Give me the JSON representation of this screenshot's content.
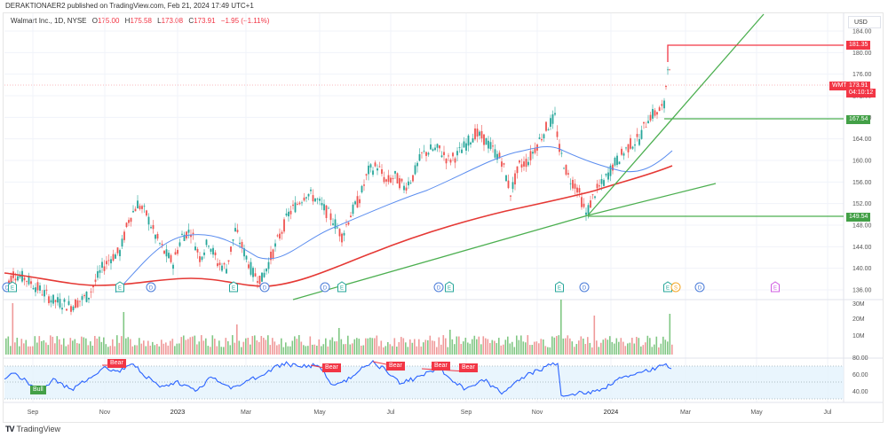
{
  "header": {
    "published": "DERAKTIONAER2 published on TradingView.com, Feb 21, 2024 17:49 UTC+1"
  },
  "legend": {
    "symbol": "Walmart Inc., 1D, NYSE",
    "open_label": "O",
    "open": "175.00",
    "high_label": "H",
    "high": "175.58",
    "low_label": "L",
    "low": "173.08",
    "close_label": "C",
    "close": "173.91",
    "change": "−1.95 (−1.11%)"
  },
  "price_axis": {
    "currency": "USD",
    "ticks": [
      "184.00",
      "180.00",
      "176.00",
      "172.00",
      "168.00",
      "164.00",
      "160.00",
      "156.00",
      "152.00",
      "148.00",
      "144.00",
      "140.00",
      "136.00"
    ]
  },
  "price_tags": {
    "resistance": "181.35",
    "symbol": "WMT",
    "last_price": "173.91",
    "countdown": "04:10:12",
    "support_1": "167.54",
    "support_2": "149.54"
  },
  "volume_axis": {
    "ticks": [
      "30M",
      "20M",
      "10M"
    ]
  },
  "rsi_axis": {
    "ticks": [
      "80.00",
      "60.00",
      "40.00"
    ]
  },
  "rsi_labels": [
    {
      "text": "Bull",
      "type": "bull"
    },
    {
      "text": "Bear",
      "type": "bear"
    },
    {
      "text": "Bear",
      "type": "bear"
    },
    {
      "text": "Bear",
      "type": "bear"
    },
    {
      "text": "Bear",
      "type": "bear"
    },
    {
      "text": "Bear",
      "type": "bear"
    }
  ],
  "time_axis": {
    "labels": [
      "Sep",
      "Nov",
      "2023",
      "Mar",
      "May",
      "Jul",
      "Sep",
      "Nov",
      "2024",
      "Mar",
      "May",
      "Jul"
    ]
  },
  "event_markers": [
    "D",
    "E",
    "E",
    "D",
    "E",
    "D",
    "D",
    "E",
    "D",
    "E",
    "E",
    "D",
    "E",
    "S",
    "D",
    "E"
  ],
  "footer": {
    "brand": "TradingView",
    "logo": "TV"
  },
  "colors": {
    "up": "#26a69a",
    "down": "#ef5350",
    "ma_long": "#e53935",
    "ma_short": "#5b8def",
    "trendline": "#4caf50",
    "rsi_line": "#2962ff",
    "rsi_band": "#e3f2fd",
    "resistance": "#f23645",
    "support": "#4caf50"
  },
  "chart_data": {
    "type": "candlestick",
    "title": "Walmart Inc., 1D, NYSE",
    "ylabel": "USD",
    "ylim": [
      134,
      186
    ],
    "x": [
      "Sep 2022",
      "Nov 2022",
      "Jan 2023",
      "Mar 2023",
      "May 2023",
      "Jul 2023",
      "Sep 2023",
      "Nov 2023",
      "Jan 2024",
      "Feb 2024"
    ],
    "series": [
      {
        "name": "Close (approx)",
        "values": [
          138,
          139,
          150,
          138,
          147,
          157,
          163,
          168,
          156,
          173.91
        ]
      },
      {
        "name": "MA short (blue, approx)",
        "values": [
          136,
          140,
          146,
          142,
          149,
          155,
          160,
          164,
          157,
          161
        ]
      },
      {
        "name": "MA long (red, approx)",
        "values": [
          138,
          136,
          137,
          136,
          140,
          145,
          150,
          153,
          155,
          159
        ]
      }
    ],
    "last": {
      "open": 175.0,
      "high": 175.58,
      "low": 173.08,
      "close": 173.91,
      "change": -1.95,
      "change_pct": -1.11
    },
    "horizontal_levels": [
      181.35,
      167.54,
      149.54
    ],
    "volume": {
      "ylim": [
        0,
        33000000
      ],
      "ticks": [
        "10M",
        "20M",
        "30M"
      ],
      "spikes_approx": [
        30000000,
        27000000,
        25000000
      ]
    },
    "rsi": {
      "ylim": [
        25,
        85
      ],
      "band": [
        30,
        70
      ],
      "ticks": [
        40,
        60,
        80
      ],
      "last_approx": 70
    },
    "annotations": [
      "Bull",
      "Bear",
      "Bear",
      "Bear",
      "Bear",
      "Bear"
    ]
  }
}
